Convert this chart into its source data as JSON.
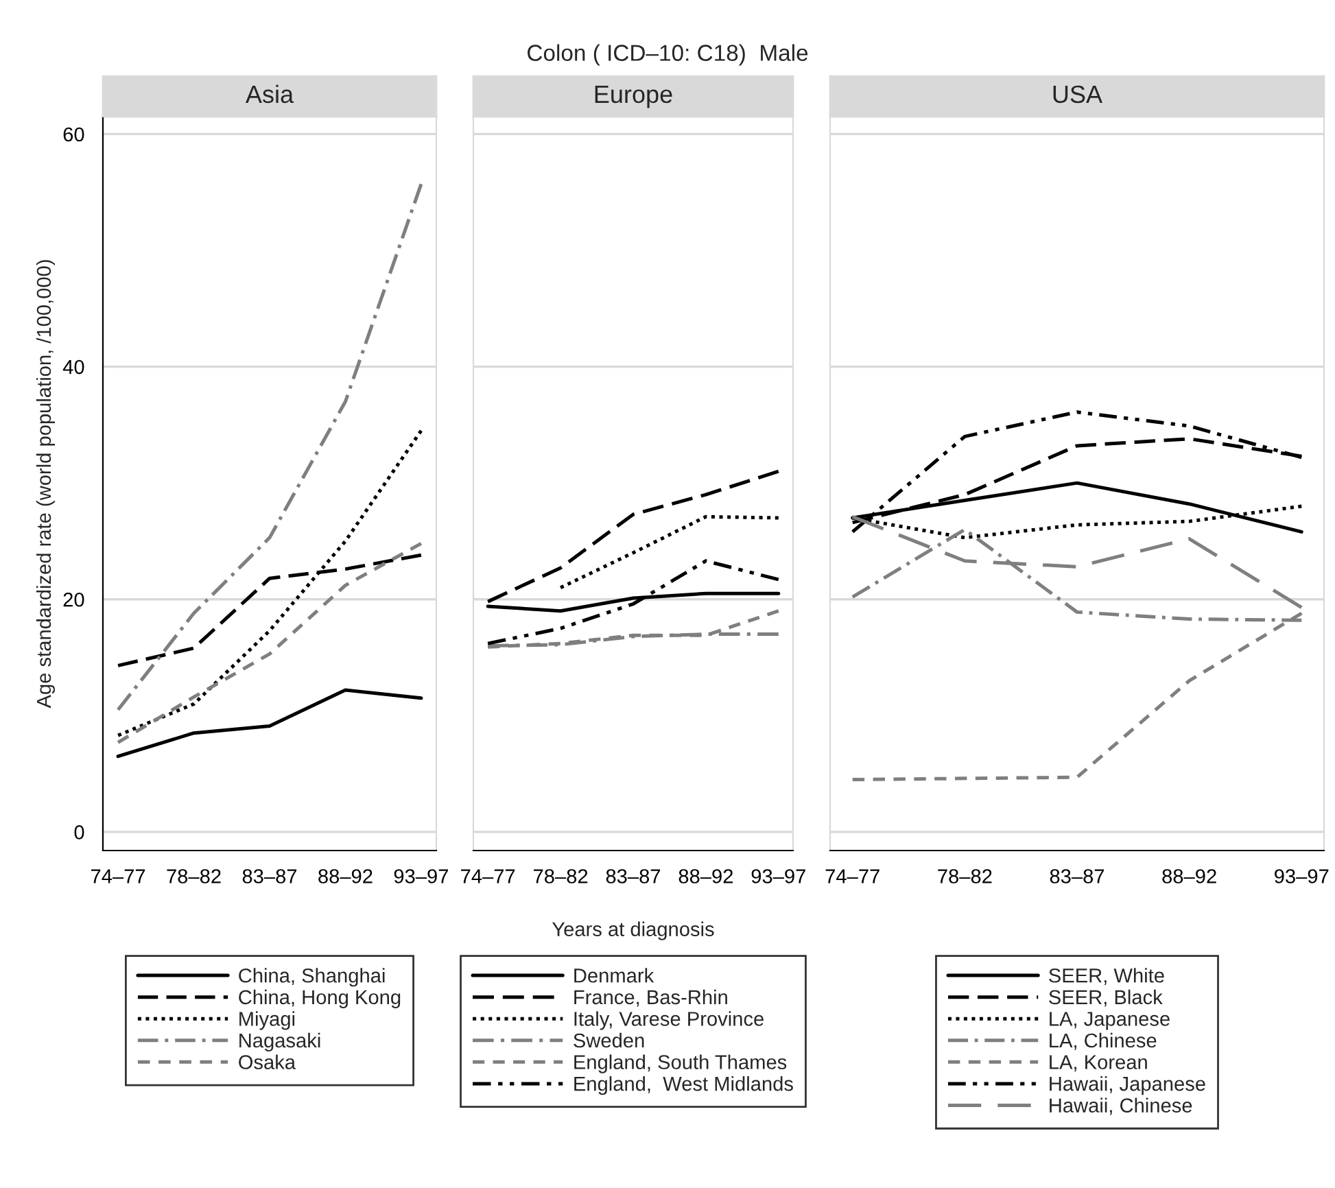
{
  "chart_data": [
    {
      "type": "line",
      "title": "Asia",
      "ylabel": "Age standardized rate (world population, /100,000)",
      "annotations": [
        "Colon ( ICD–10: C18)  Male"
      ],
      "categories": [
        "74–77",
        "78–82",
        "83–87",
        "88–92",
        "93–97"
      ],
      "ylim": [
        -1.6,
        61.5
      ],
      "yticks": [
        0,
        20,
        40,
        60
      ],
      "grid": "y",
      "legend": "bottom",
      "series": [
        {
          "name": "China, Shanghai",
          "color": "#000000",
          "line_style": "solid",
          "values": [
            6.5,
            8.5,
            9.1,
            12.2,
            11.5
          ]
        },
        {
          "name": "China, Hong Kong",
          "color": "#000000",
          "line_style": "dashed",
          "values": [
            14.3,
            15.8,
            21.8,
            22.6,
            23.8
          ]
        },
        {
          "name": "Miyagi",
          "color": "#000000",
          "line_style": "dotted",
          "values": [
            8.3,
            11,
            17.3,
            25,
            34.5
          ]
        },
        {
          "name": "Nagasaki",
          "color": "#7f7f7f",
          "line_style": "dashdot",
          "values": [
            10.5,
            18.8,
            25.3,
            37,
            55.7
          ]
        },
        {
          "name": "Osaka",
          "color": "#7f7f7f",
          "line_style": "shortdash",
          "values": [
            7.7,
            11.6,
            15.3,
            21.2,
            24.8
          ]
        }
      ]
    },
    {
      "type": "line",
      "title": "Europe",
      "xlabel": "Years at diagnosis",
      "categories": [
        "74–77",
        "78–82",
        "83–87",
        "88–92",
        "93–97"
      ],
      "ylim": [
        -1.6,
        61.5
      ],
      "yticks": [
        0,
        20,
        40,
        60
      ],
      "tick_labels": "x",
      "grid": "y",
      "legend": "bottom",
      "series": [
        {
          "name": "Denmark",
          "color": "#000000",
          "line_style": "solid",
          "values": [
            19.4,
            19,
            20.1,
            20.5,
            20.5
          ]
        },
        {
          "name": "France, Bas-Rhin",
          "color": "#000000",
          "line_style": "dashed",
          "values": [
            19.8,
            22.7,
            27.3,
            29,
            31
          ]
        },
        {
          "name": "Italy, Varese Province",
          "color": "#000000",
          "line_style": "dotted",
          "values": [
            null,
            21,
            24,
            27.1,
            27
          ]
        },
        {
          "name": "Sweden",
          "color": "#7f7f7f",
          "line_style": "dashdot",
          "values": [
            16,
            16.1,
            16.8,
            17,
            17
          ]
        },
        {
          "name": "England, South Thames",
          "color": "#7f7f7f",
          "line_style": "shortdash",
          "values": [
            15.9,
            16.2,
            16.9,
            16.9,
            19
          ]
        },
        {
          "name": "England,  West Midlands",
          "color": "#000000",
          "line_style": "dashdotdot",
          "values": [
            16.2,
            17.5,
            19.6,
            23.3,
            21.7
          ]
        }
      ]
    },
    {
      "type": "line",
      "title": "USA",
      "categories": [
        "74–77",
        "78–82",
        "83–87",
        "88–92",
        "93–97"
      ],
      "ylim": [
        -1.6,
        61.5
      ],
      "yticks": [
        0,
        20,
        40,
        60
      ],
      "tick_labels": "x",
      "grid": "y",
      "legend": "bottom",
      "series": [
        {
          "name": "SEER, White",
          "color": "#000000",
          "line_style": "solid",
          "values": [
            27,
            28.5,
            30,
            28.2,
            25.8
          ]
        },
        {
          "name": "SEER, Black",
          "color": "#000000",
          "line_style": "dashed",
          "values": [
            26.6,
            29,
            33.2,
            33.8,
            32.3
          ]
        },
        {
          "name": "LA, Japanese",
          "color": "#000000",
          "line_style": "dotted",
          "values": [
            27,
            25.3,
            26.4,
            26.7,
            28
          ]
        },
        {
          "name": "LA, Chinese",
          "color": "#7f7f7f",
          "line_style": "dashdot",
          "values": [
            20.2,
            26,
            18.9,
            18.3,
            18.2
          ]
        },
        {
          "name": "LA, Korean",
          "color": "#7f7f7f",
          "line_style": "shortdash",
          "values": [
            4.5,
            4.6,
            4.7,
            13,
            18.8
          ]
        },
        {
          "name": "Hawaii, Japanese",
          "color": "#000000",
          "line_style": "dashdotdot",
          "values": [
            25.8,
            34,
            36.1,
            34.9,
            32.2
          ]
        },
        {
          "name": "Hawaii, Chinese",
          "color": "#7f7f7f",
          "line_style": "longdash",
          "values": [
            27.1,
            23.3,
            22.8,
            25.2,
            19.3
          ]
        }
      ]
    }
  ]
}
